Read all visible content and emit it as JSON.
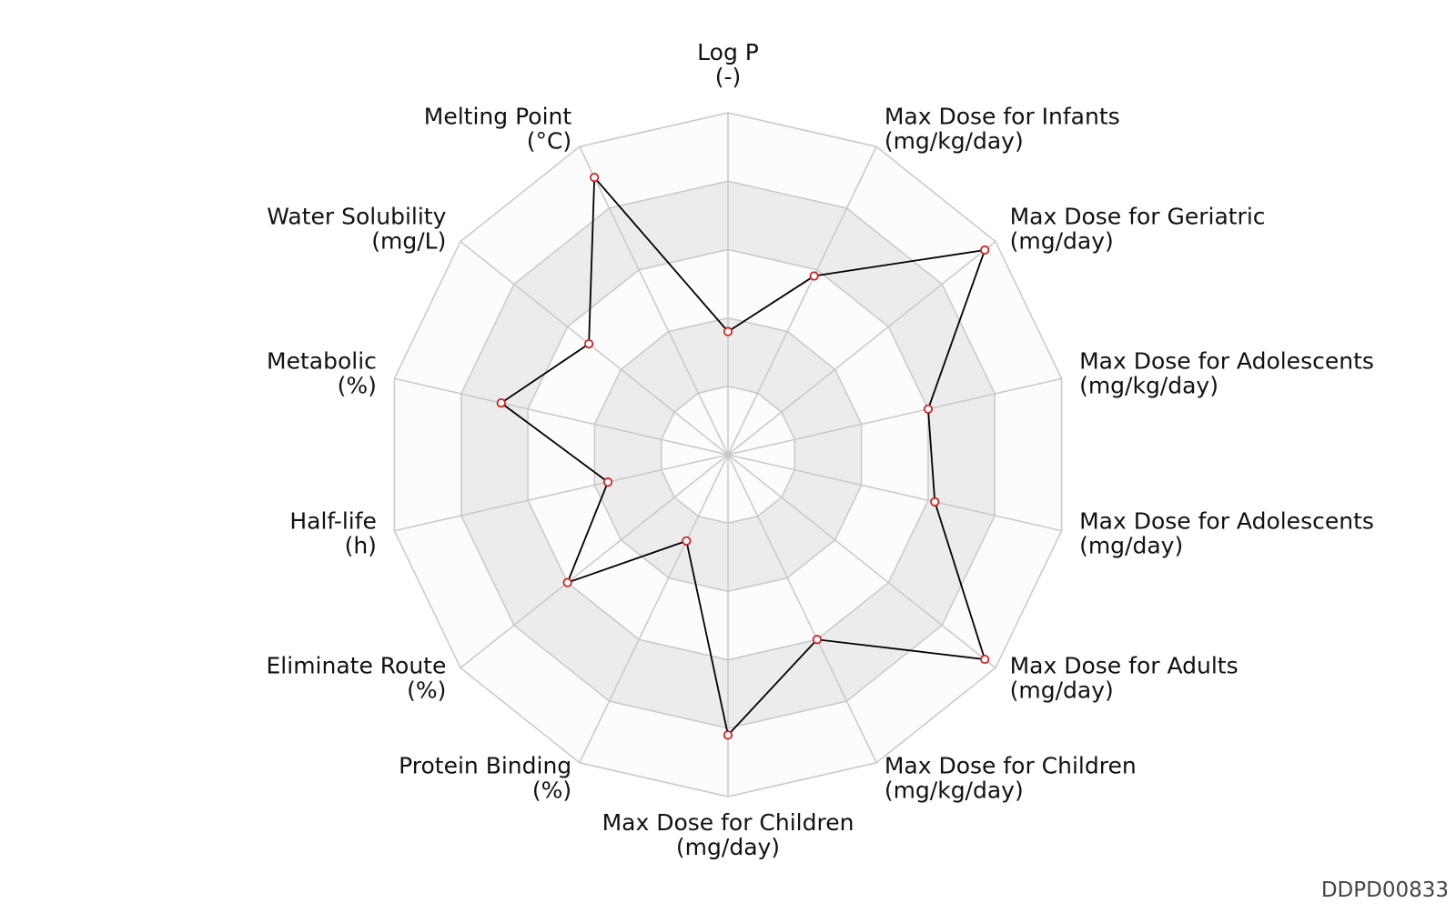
{
  "chart_data": {
    "type": "radar",
    "max": 5,
    "rings": 5,
    "axes": [
      {
        "name": "Log P",
        "unit": "(-)",
        "value": 1.8
      },
      {
        "name": "Max Dose for Infants",
        "unit": "(mg/kg/day)",
        "value": 2.9
      },
      {
        "name": "Max Dose for Geriatric",
        "unit": "(mg/day)",
        "value": 4.8
      },
      {
        "name": "Max Dose for Adolescents",
        "unit": "(mg/kg/day)",
        "value": 3.0
      },
      {
        "name": "Max Dose for Adolescents",
        "unit": "(mg/day)",
        "value": 3.1
      },
      {
        "name": "Max Dose for Adults",
        "unit": "(mg/day)",
        "value": 4.8
      },
      {
        "name": "Max Dose for Children",
        "unit": "(mg/kg/day)",
        "value": 3.0
      },
      {
        "name": "Max Dose for Children",
        "unit": "(mg/day)",
        "value": 4.1
      },
      {
        "name": "Protein Binding",
        "unit": "(%)",
        "value": 1.4
      },
      {
        "name": "Eliminate Route",
        "unit": "(%)",
        "value": 3.0
      },
      {
        "name": "Half-life",
        "unit": "(h)",
        "value": 1.8
      },
      {
        "name": "Metabolic",
        "unit": "(%)",
        "value": 3.4
      },
      {
        "name": "Water Solubility",
        "unit": "(mg/L)",
        "value": 2.6
      },
      {
        "name": "Melting Point",
        "unit": "(°C)",
        "value": 4.5
      }
    ]
  },
  "colors": {
    "band_fill": "#ececec",
    "band_alt_fill": "#fcfcfc",
    "grid_line": "#c8c8c8",
    "data_line": "#000000",
    "marker_edge": "#cc2222",
    "marker_fill": "#ffffff"
  },
  "watermark": "DDPD00833"
}
